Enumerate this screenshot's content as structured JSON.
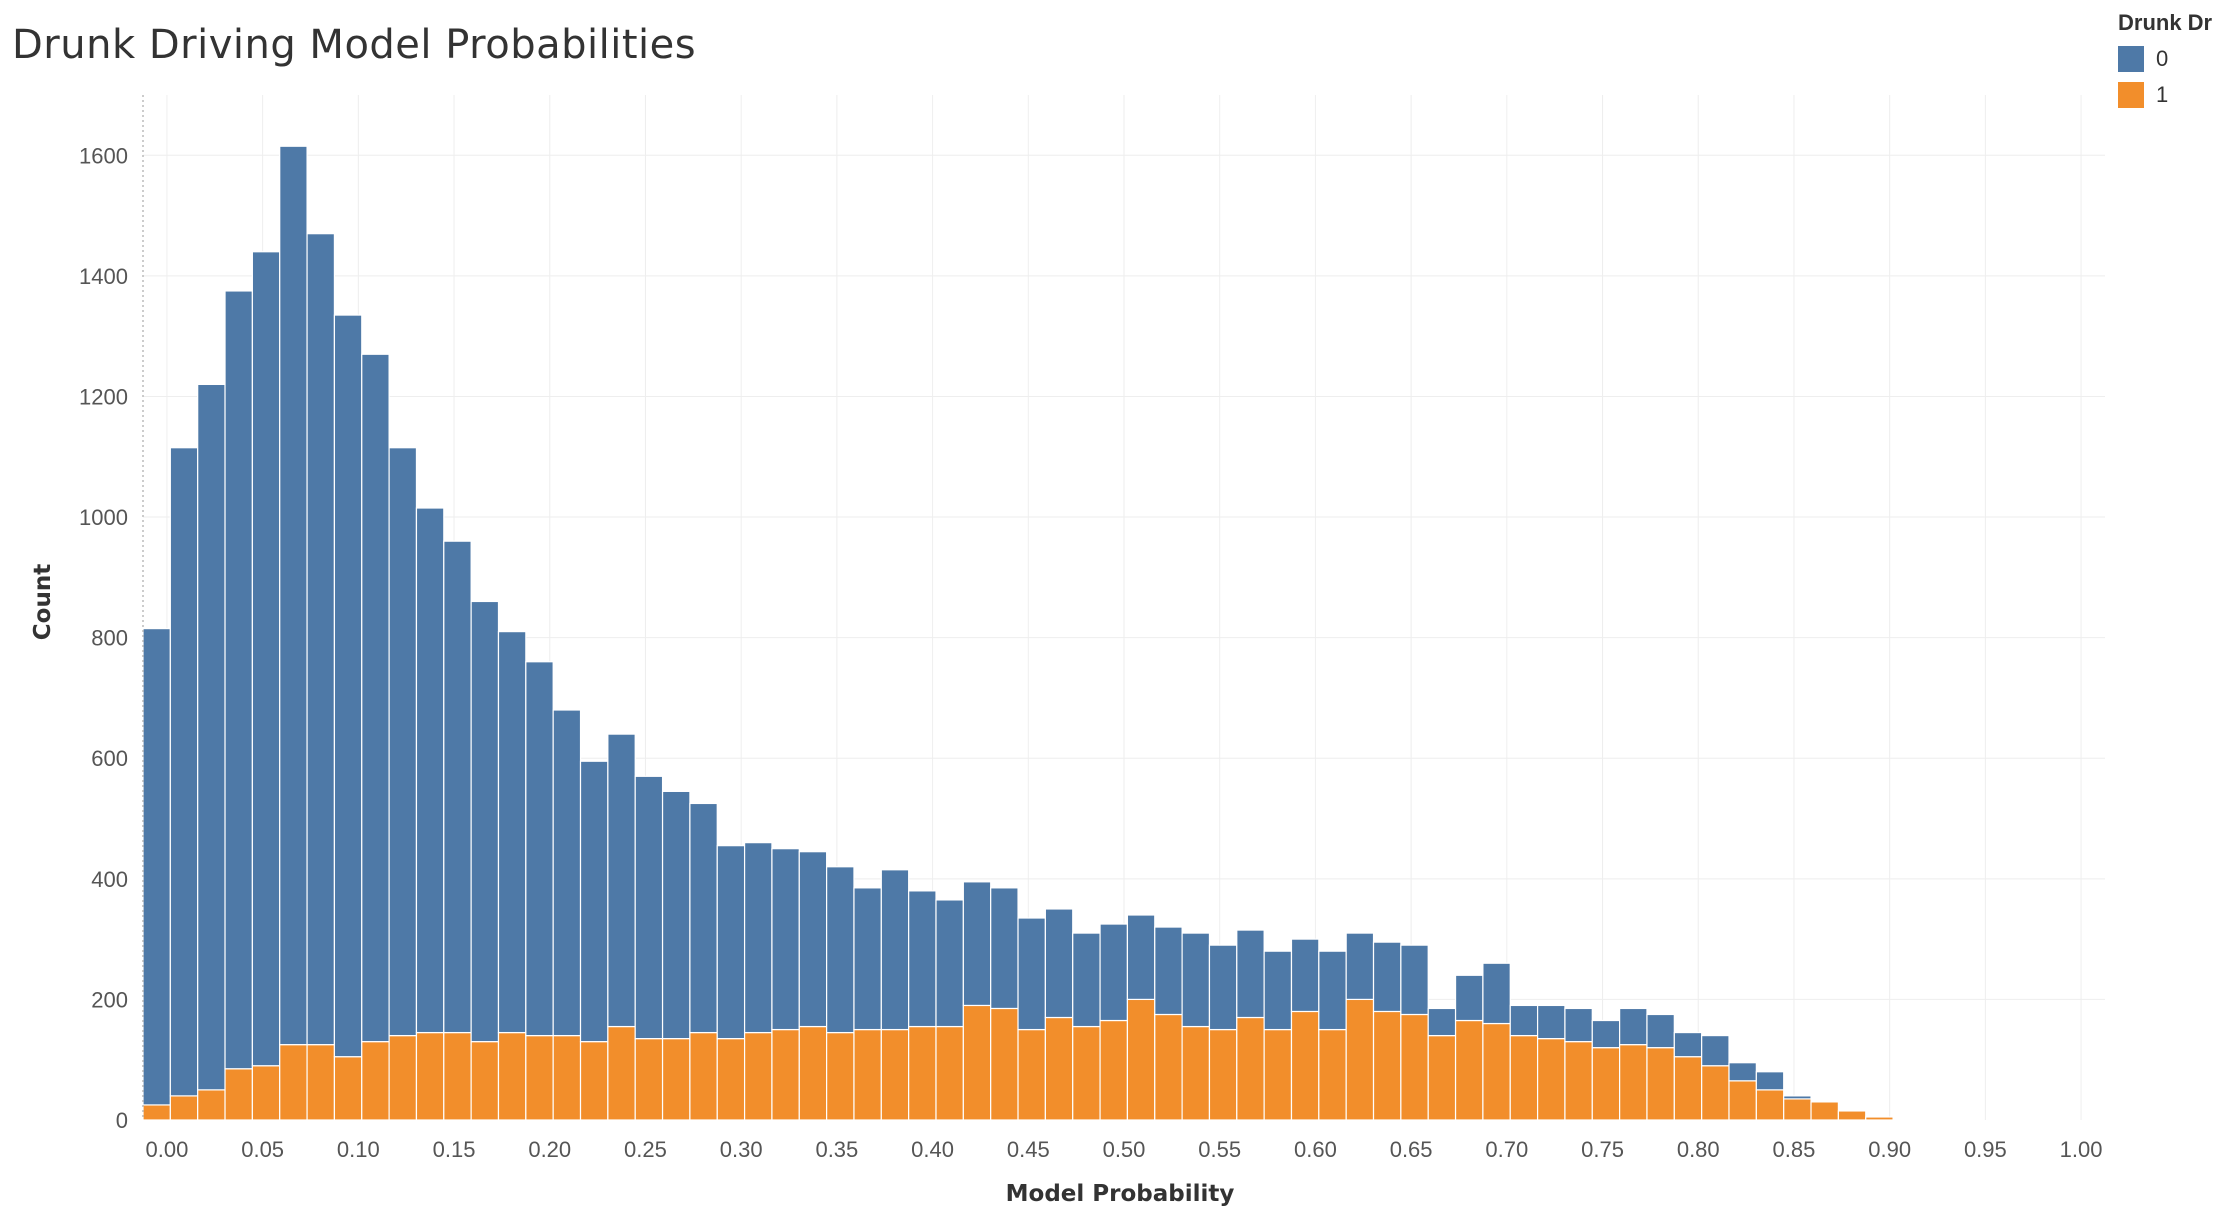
{
  "colors": {
    "series_0": "#4e79a7",
    "series_1": "#f28e2b",
    "grid": "#eeeeee",
    "bar_outline": "#ffffff"
  },
  "chart_data": {
    "type": "bar",
    "stacked": true,
    "title": "Drunk Driving Model Probabilities",
    "xlabel": "Model Probability",
    "ylabel": "Count",
    "ylim": [
      0,
      1700
    ],
    "xlim": [
      -0.0125,
      1.0125
    ],
    "bin_width": 0.0142857,
    "y_ticks": [
      "0",
      "200",
      "400",
      "600",
      "800",
      "1000",
      "1200",
      "1400",
      "1600"
    ],
    "y_tick_values": [
      0,
      200,
      400,
      600,
      800,
      1000,
      1200,
      1400,
      1600
    ],
    "x_ticks": [
      "0.00",
      "0.05",
      "0.10",
      "0.15",
      "0.20",
      "0.25",
      "0.30",
      "0.35",
      "0.40",
      "0.45",
      "0.50",
      "0.55",
      "0.60",
      "0.65",
      "0.70",
      "0.75",
      "0.80",
      "0.85",
      "0.90",
      "0.95",
      "1.00"
    ],
    "x_tick_values": [
      0.0,
      0.05,
      0.1,
      0.15,
      0.2,
      0.25,
      0.3,
      0.35,
      0.4,
      0.45,
      0.5,
      0.55,
      0.6,
      0.65,
      0.7,
      0.75,
      0.8,
      0.85,
      0.9,
      0.95,
      1.0
    ],
    "grid": true,
    "legend": {
      "title": "Drunk Dr",
      "position": "top-right"
    },
    "series": [
      {
        "name": "0",
        "color": "#4e79a7",
        "values": [
          790,
          1075,
          1170,
          1290,
          1350,
          1490,
          1345,
          1230,
          1140,
          975,
          870,
          815,
          730,
          665,
          620,
          540,
          465,
          485,
          435,
          410,
          380,
          320,
          315,
          300,
          290,
          275,
          235,
          265,
          225,
          210,
          205,
          200,
          185,
          180,
          155,
          160,
          140,
          145,
          155,
          140,
          145,
          130,
          120,
          130,
          110,
          115,
          115,
          45,
          75,
          100,
          50,
          55,
          55,
          45,
          60,
          55,
          40,
          50,
          30,
          30,
          5,
          0,
          0,
          0,
          0,
          0,
          0,
          0,
          0,
          0
        ]
      },
      {
        "name": "1",
        "color": "#f28e2b",
        "values": [
          25,
          40,
          50,
          85,
          90,
          125,
          125,
          105,
          130,
          140,
          145,
          145,
          130,
          145,
          140,
          140,
          130,
          155,
          135,
          135,
          145,
          135,
          145,
          150,
          155,
          145,
          150,
          150,
          155,
          155,
          190,
          185,
          150,
          170,
          155,
          165,
          200,
          175,
          155,
          150,
          170,
          150,
          180,
          150,
          200,
          180,
          175,
          140,
          165,
          160,
          140,
          135,
          130,
          120,
          125,
          120,
          105,
          90,
          65,
          50,
          35,
          30,
          15,
          5,
          0,
          0,
          0,
          0,
          0,
          0
        ]
      }
    ]
  }
}
